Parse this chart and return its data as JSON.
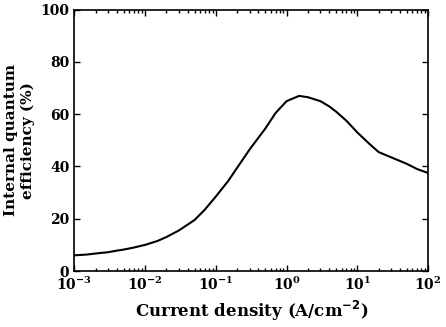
{
  "xlabel": "Current density (A/cm$^{-2}$)",
  "ylabel": "Internal quantum\nefficiency (%)",
  "xlim": [
    0.001,
    100.0
  ],
  "ylim": [
    0,
    100
  ],
  "yticks": [
    0,
    20,
    40,
    60,
    80,
    100
  ],
  "line_color": "#000000",
  "line_width": 1.5,
  "background_color": "#ffffff",
  "x_data": [
    0.001,
    0.0015,
    0.002,
    0.003,
    0.004,
    0.005,
    0.007,
    0.01,
    0.015,
    0.02,
    0.03,
    0.05,
    0.07,
    0.1,
    0.15,
    0.2,
    0.3,
    0.5,
    0.7,
    1.0,
    1.5,
    2.0,
    3.0,
    4.0,
    5.0,
    7.0,
    10.0,
    15.0,
    20.0,
    30.0,
    50.0,
    70.0,
    100.0
  ],
  "y_data": [
    6.0,
    6.3,
    6.7,
    7.2,
    7.8,
    8.2,
    9.0,
    10.0,
    11.5,
    13.0,
    15.5,
    19.5,
    23.5,
    28.5,
    34.5,
    39.5,
    46.5,
    54.5,
    60.5,
    65.0,
    67.0,
    66.5,
    65.0,
    63.0,
    61.0,
    57.5,
    53.0,
    48.5,
    45.5,
    43.5,
    41.0,
    39.0,
    37.5
  ],
  "xlabel_fontsize": 12,
  "ylabel_fontsize": 11,
  "tick_fontsize": 10,
  "font_family": "Times New Roman"
}
